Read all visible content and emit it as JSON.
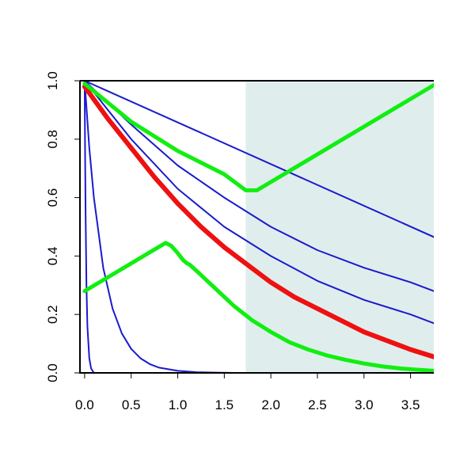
{
  "chart_data": {
    "type": "line",
    "title": "",
    "xlabel": "",
    "ylabel": "",
    "xlim": [
      -0.05,
      3.75
    ],
    "ylim": [
      0.0,
      1.0
    ],
    "x_ticks": [
      0.0,
      0.5,
      1.0,
      1.5,
      2.0,
      2.5,
      3.0,
      3.5
    ],
    "x_tick_labels": [
      "0.0",
      "0.5",
      "1.0",
      "1.5",
      "2.0",
      "2.5",
      "3.0",
      "3.5"
    ],
    "y_ticks": [
      0.0,
      0.2,
      0.4,
      0.6,
      0.8,
      1.0
    ],
    "y_tick_labels": [
      "0.0",
      "0.2",
      "0.4",
      "0.6",
      "0.8",
      "1.0"
    ],
    "grid": false,
    "legend": "none",
    "shaded_region": {
      "x_from": 1.73,
      "x_to": 3.75,
      "color": "#e0eded"
    },
    "colors": {
      "blue": "#1a1acc",
      "red": "#ee1111",
      "green": "#11ee11"
    },
    "series": [
      {
        "color": "#1a1acc",
        "width": 2,
        "x": [
          0.0,
          0.005,
          0.01,
          0.02,
          0.03,
          0.05,
          0.07,
          0.1,
          0.3,
          1.0,
          3.75
        ],
        "y": [
          1.0,
          0.75,
          0.55,
          0.3,
          0.16,
          0.05,
          0.015,
          0.0,
          0.0,
          0.0,
          0.0
        ]
      },
      {
        "color": "#1a1acc",
        "width": 2,
        "x": [
          0.0,
          0.05,
          0.1,
          0.2,
          0.3,
          0.4,
          0.5,
          0.6,
          0.7,
          0.8,
          1.0,
          1.2,
          1.4,
          1.6,
          2.0,
          2.5,
          3.0,
          3.75
        ],
        "y": [
          1.0,
          0.77,
          0.6,
          0.36,
          0.22,
          0.135,
          0.082,
          0.05,
          0.03,
          0.018,
          0.007,
          0.0025,
          0.001,
          0.0,
          0.0,
          0.0,
          0.0,
          0.0
        ]
      },
      {
        "color": "#1a1acc",
        "width": 2,
        "x": [
          0.0,
          0.5,
          1.0,
          1.5,
          2.0,
          2.5,
          3.0,
          3.5,
          3.75
        ],
        "y": [
          1.0,
          0.8,
          0.63,
          0.5,
          0.4,
          0.315,
          0.25,
          0.2,
          0.17
        ]
      },
      {
        "color": "#1a1acc",
        "width": 2,
        "x": [
          0.0,
          0.5,
          1.0,
          1.5,
          2.0,
          2.5,
          3.0,
          3.5,
          3.75
        ],
        "y": [
          1.0,
          0.85,
          0.71,
          0.6,
          0.5,
          0.42,
          0.36,
          0.31,
          0.28
        ]
      },
      {
        "color": "#1a1acc",
        "width": 2,
        "x": [
          0.0,
          3.75
        ],
        "y": [
          1.0,
          0.465
        ]
      },
      {
        "color": "#ee1111",
        "width": 6,
        "x": [
          0.0,
          0.25,
          0.5,
          0.75,
          1.0,
          1.25,
          1.5,
          1.75,
          2.0,
          2.25,
          2.5,
          2.75,
          3.0,
          3.25,
          3.5,
          3.75
        ],
        "y": [
          0.98,
          0.87,
          0.77,
          0.67,
          0.58,
          0.5,
          0.43,
          0.37,
          0.31,
          0.26,
          0.22,
          0.18,
          0.14,
          0.11,
          0.08,
          0.055
        ]
      },
      {
        "color": "#11ee11",
        "width": 5,
        "x": [
          0.0,
          0.5,
          1.0,
          1.5,
          1.73,
          1.85,
          3.75
        ],
        "y": [
          0.99,
          0.86,
          0.76,
          0.68,
          0.625,
          0.625,
          0.985
        ]
      },
      {
        "color": "#11ee11",
        "width": 5,
        "x": [
          0.0,
          0.87,
          0.93,
          1.0,
          1.06,
          1.1,
          1.13,
          1.2,
          1.4,
          1.6,
          1.8,
          2.0,
          2.2,
          2.4,
          2.6,
          2.8,
          3.0,
          3.2,
          3.4,
          3.6,
          3.75
        ],
        "y": [
          0.28,
          0.445,
          0.435,
          0.41,
          0.385,
          0.375,
          0.37,
          0.35,
          0.29,
          0.23,
          0.18,
          0.14,
          0.105,
          0.08,
          0.06,
          0.045,
          0.032,
          0.022,
          0.015,
          0.01,
          0.007
        ]
      }
    ]
  }
}
